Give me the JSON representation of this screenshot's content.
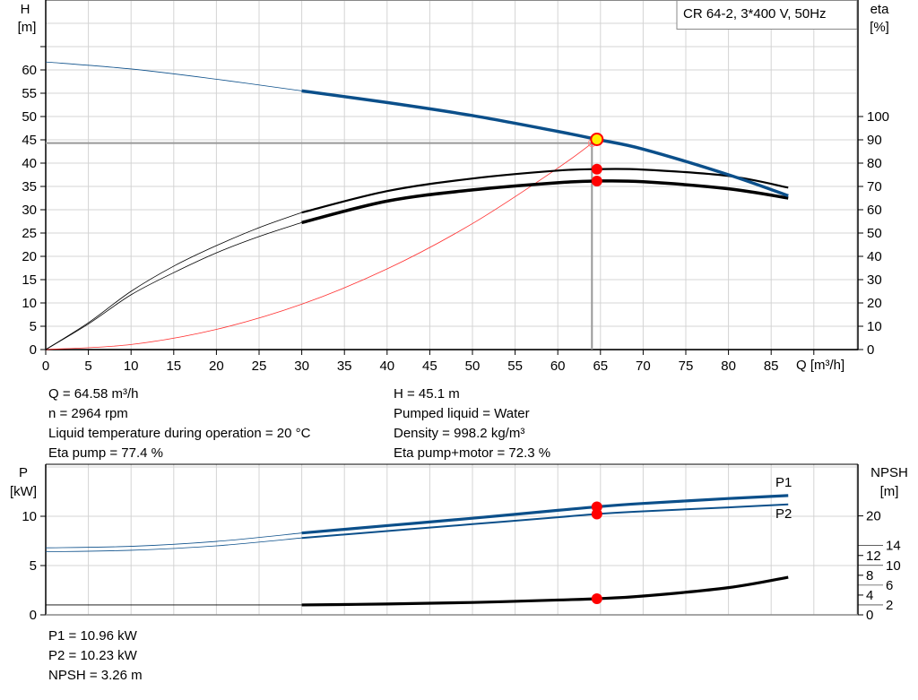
{
  "chart_data": [
    {
      "type": "line",
      "title": "CR 64-2, 3*400 V, 50Hz",
      "xlabel": "Q [m³/h]",
      "ylabel": "H\n[m]",
      "ylabel_parts": [
        "H",
        "[m]"
      ],
      "y2label_parts": [
        "eta",
        "[%]"
      ],
      "xlim": [
        0,
        95
      ],
      "ylim": [
        0,
        75
      ],
      "y2lim": [
        0,
        150
      ],
      "xticks": [
        0,
        5,
        10,
        15,
        20,
        25,
        30,
        35,
        40,
        45,
        50,
        55,
        60,
        65,
        70,
        75,
        80,
        85
      ],
      "yticks": [
        0,
        5,
        10,
        15,
        20,
        25,
        30,
        35,
        40,
        45,
        50,
        55,
        60
      ],
      "y2ticks": [
        0,
        10,
        20,
        30,
        40,
        50,
        60,
        70,
        80,
        90,
        100
      ],
      "grid": true,
      "colors": {
        "head": "#0b4f8a",
        "eta": "#000000",
        "system": "#ff3030",
        "duty_point": "#ffee00",
        "marker": "#ff0000"
      },
      "series": [
        {
          "key": "head",
          "axis": "H",
          "x": [
            0,
            10,
            20,
            30,
            40,
            50,
            60,
            64.58,
            70,
            80,
            87
          ],
          "values": [
            61.7,
            60.2,
            58,
            55.5,
            53,
            50.2,
            46.8,
            45.1,
            43,
            37.5,
            33
          ],
          "thin_until": 30
        },
        {
          "key": "eta_pump",
          "axis": "eta",
          "x": [
            0,
            5,
            10,
            15,
            20,
            25,
            30,
            40,
            50,
            60,
            64.58,
            70,
            80,
            87
          ],
          "values": [
            0,
            11.5,
            25,
            35.8,
            44.6,
            52.3,
            58.8,
            68,
            73.4,
            76.8,
            77.4,
            77.2,
            74.5,
            69.5
          ],
          "thin_until": 30
        },
        {
          "key": "eta_pump_motor",
          "axis": "eta",
          "x": [
            0,
            5,
            10,
            15,
            20,
            25,
            30,
            40,
            50,
            60,
            64.58,
            70,
            80,
            87
          ],
          "values": [
            0,
            11,
            23.5,
            33,
            41.5,
            48.5,
            54.5,
            63.7,
            68.5,
            71.6,
            72.3,
            72,
            69,
            65
          ],
          "thin_until": 30
        },
        {
          "key": "system_curve",
          "axis": "H",
          "x": [
            0,
            10,
            20,
            30,
            40,
            50,
            60,
            64.58
          ],
          "values": [
            0,
            1.08,
            4.33,
            9.73,
            17.3,
            27.03,
            38.93,
            45.1
          ]
        }
      ],
      "duty_point": {
        "Q": 64.58,
        "H": 45.1,
        "eta_pump": 77.4,
        "eta_pump_motor": 72.3
      },
      "crosshair": {
        "Q": 64.0,
        "H": 44.3
      }
    },
    {
      "type": "line",
      "ylabel_parts": [
        "P",
        "[kW]"
      ],
      "y2label_parts": [
        "NPSH",
        "[m]"
      ],
      "xlim": [
        0,
        95
      ],
      "ylim": [
        0,
        15.3
      ],
      "y2lim": [
        0,
        30.5
      ],
      "yticks": [
        0,
        5,
        10
      ],
      "y2ticks": [
        0,
        2,
        4,
        6,
        8,
        10,
        12,
        14,
        20
      ],
      "grid": true,
      "series": [
        {
          "key": "P1",
          "name": "P1",
          "axis": "P",
          "x": [
            0,
            10,
            20,
            30,
            40,
            50,
            60,
            64.58,
            70,
            80,
            87
          ],
          "values": [
            6.8,
            6.95,
            7.45,
            8.3,
            9.05,
            9.8,
            10.6,
            10.96,
            11.3,
            11.8,
            12.1
          ],
          "thin_until": 30
        },
        {
          "key": "P2",
          "name": "P2",
          "axis": "P",
          "x": [
            0,
            10,
            20,
            30,
            40,
            50,
            60,
            64.58,
            70,
            80,
            87
          ],
          "values": [
            6.4,
            6.55,
            7.0,
            7.8,
            8.5,
            9.2,
            9.9,
            10.23,
            10.5,
            10.9,
            11.2
          ],
          "thin_until": 30
        },
        {
          "key": "NPSH",
          "axis": "NPSH",
          "x": [
            0,
            30,
            40,
            50,
            60,
            64.58,
            70,
            80,
            87
          ],
          "values": [
            2.0,
            2.0,
            2.2,
            2.5,
            3.0,
            3.26,
            3.8,
            5.5,
            7.6
          ],
          "thin_until": 30
        }
      ],
      "duty_point": {
        "Q": 64.58,
        "P1": 10.96,
        "P2": 10.23,
        "NPSH": 3.26
      }
    }
  ],
  "info_top_left": [
    "Q = 64.58 m³/h",
    "n = 2964 rpm",
    "Liquid temperature during operation = 20 °C",
    "Eta pump = 77.4 %"
  ],
  "info_top_right": [
    "H = 45.1 m",
    "Pumped liquid = Water",
    "Density = 998.2 kg/m³",
    "Eta pump+motor = 72.3 %"
  ],
  "info_bottom": [
    "P1 = 10.96 kW",
    "P2 = 10.23 kW",
    "NPSH = 3.26 m"
  ]
}
